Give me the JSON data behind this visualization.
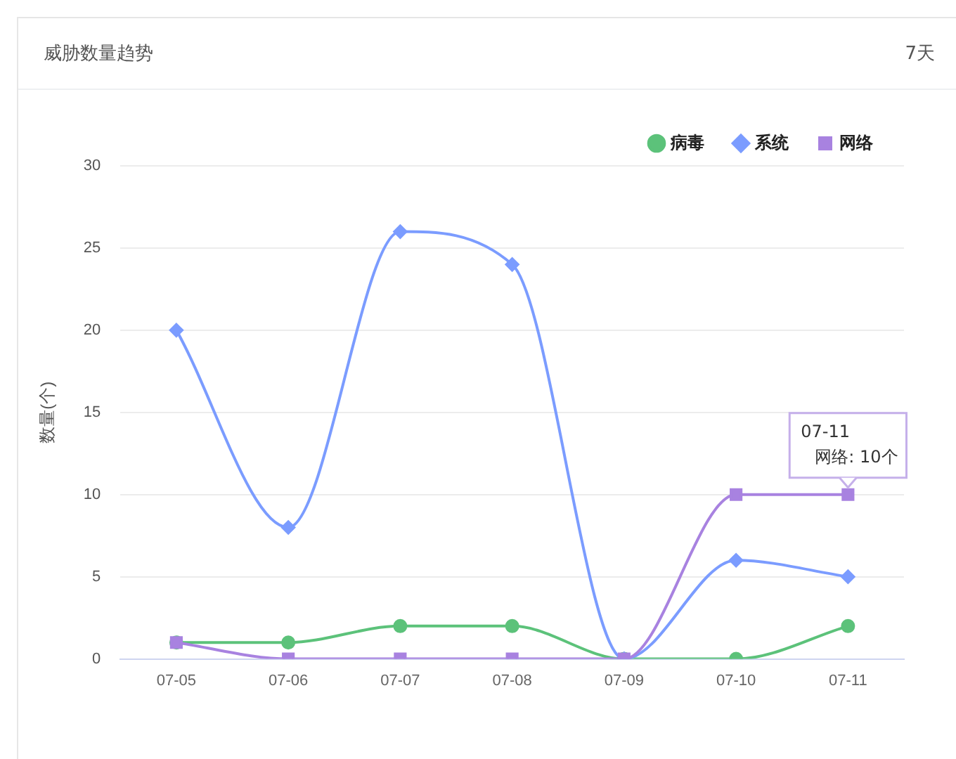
{
  "chart_data": {
    "type": "line",
    "title": "威胁数量趋势",
    "subtitle": "7天",
    "ylabel": "数量(个)",
    "categories": [
      "07-05",
      "07-06",
      "07-07",
      "07-08",
      "07-09",
      "07-10",
      "07-11"
    ],
    "series": [
      {
        "name": "病毒",
        "color": "#5cc27a",
        "marker": "circle",
        "values": [
          1,
          1,
          2,
          2,
          0,
          0,
          2
        ]
      },
      {
        "name": "系统",
        "color": "#7b9cff",
        "marker": "diamond",
        "values": [
          20,
          8,
          26,
          24,
          0,
          6,
          5
        ]
      },
      {
        "name": "网络",
        "color": "#a882e0",
        "marker": "square",
        "values": [
          1,
          0,
          0,
          0,
          0,
          10,
          10
        ]
      }
    ],
    "ylim": [
      0,
      30
    ],
    "yticks": [
      0,
      5,
      10,
      15,
      20,
      25,
      30
    ],
    "grid": "y",
    "legend": "top right",
    "annotations": [
      {
        "text": "07-11\n网络: 10个",
        "x": "07-11",
        "y": 10
      }
    ]
  }
}
